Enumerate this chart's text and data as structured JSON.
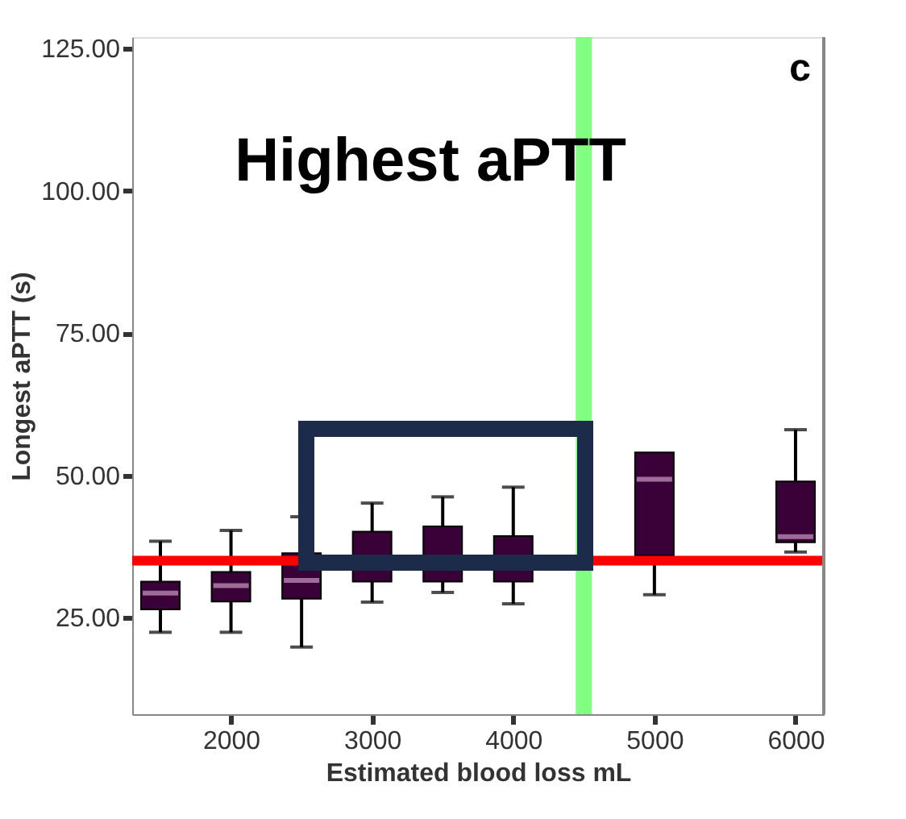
{
  "chart_data": {
    "type": "box",
    "title": "Highest aPTT",
    "xlabel": "Estimated blood loss mL",
    "ylabel": "Longest aPTT (s)",
    "annotations": [
      "c"
    ],
    "x": [
      1500,
      2000,
      2500,
      3000,
      3500,
      4000,
      5000,
      6000
    ],
    "boxes": [
      {
        "low": 22.4,
        "q1": 26.4,
        "median": 29.3,
        "q3": 31.3,
        "high": 38.4
      },
      {
        "low": 22.4,
        "q1": 27.8,
        "median": 30.6,
        "q3": 33.0,
        "high": 40.3
      },
      {
        "low": 19.8,
        "q1": 28.3,
        "median": 31.5,
        "q3": 36.3,
        "high": 42.7
      },
      {
        "low": 27.7,
        "q1": 31.3,
        "median": 34.0,
        "q3": 40.1,
        "high": 45.1
      },
      {
        "low": 29.4,
        "q1": 31.3,
        "median": 34.0,
        "q3": 41.0,
        "high": 46.2
      },
      {
        "low": 27.4,
        "q1": 31.3,
        "median": 34.0,
        "q3": 39.3,
        "high": 47.9
      },
      {
        "low": 29.0,
        "q1": 35.9,
        "median": 49.3,
        "q3": 54.0,
        "high": 54.0
      },
      {
        "low": 36.5,
        "q1": 38.2,
        "median": 39.2,
        "q3": 48.9,
        "high": 58.0
      }
    ],
    "color": "#3a0038",
    "xlim": [
      1300,
      6200
    ],
    "xticks": [
      2000,
      3000,
      4000,
      5000,
      6000
    ],
    "ylim": [
      8,
      127
    ],
    "yticks": [
      {
        "value": 25,
        "label": "25.00"
      },
      {
        "value": 50,
        "label": "50.00"
      },
      {
        "value": 75,
        "label": "75.00"
      },
      {
        "value": 100,
        "label": "100.00"
      },
      {
        "value": 125,
        "label": "125.00"
      }
    ],
    "ref_lines": [
      {
        "axis": "y",
        "value": 35,
        "color": "#ff0000"
      },
      {
        "axis": "x",
        "value": 4500,
        "color": "#80ff80"
      }
    ],
    "grid": false
  }
}
